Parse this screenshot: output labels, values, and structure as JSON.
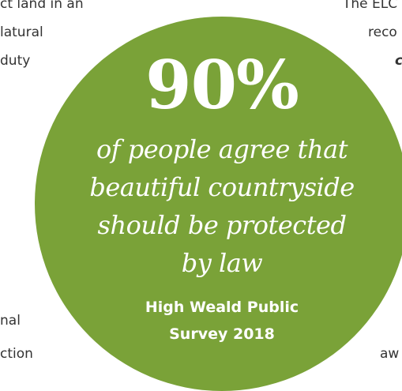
{
  "background_text": {
    "left_lines": [
      "ct land in an",
      "latural",
      "duty",
      "nal",
      "ction"
    ],
    "right_lines": [
      "The ELC",
      "reco",
      "c",
      "aw"
    ]
  },
  "callout": {
    "stat": "90%",
    "quote_lines": [
      "of people agree that",
      "beautiful countryside",
      "should be protected",
      "by law"
    ],
    "source_lines": [
      "High Weald Public",
      "Survey 2018"
    ],
    "color": "#7aa238",
    "text_color": "#ffffff"
  }
}
